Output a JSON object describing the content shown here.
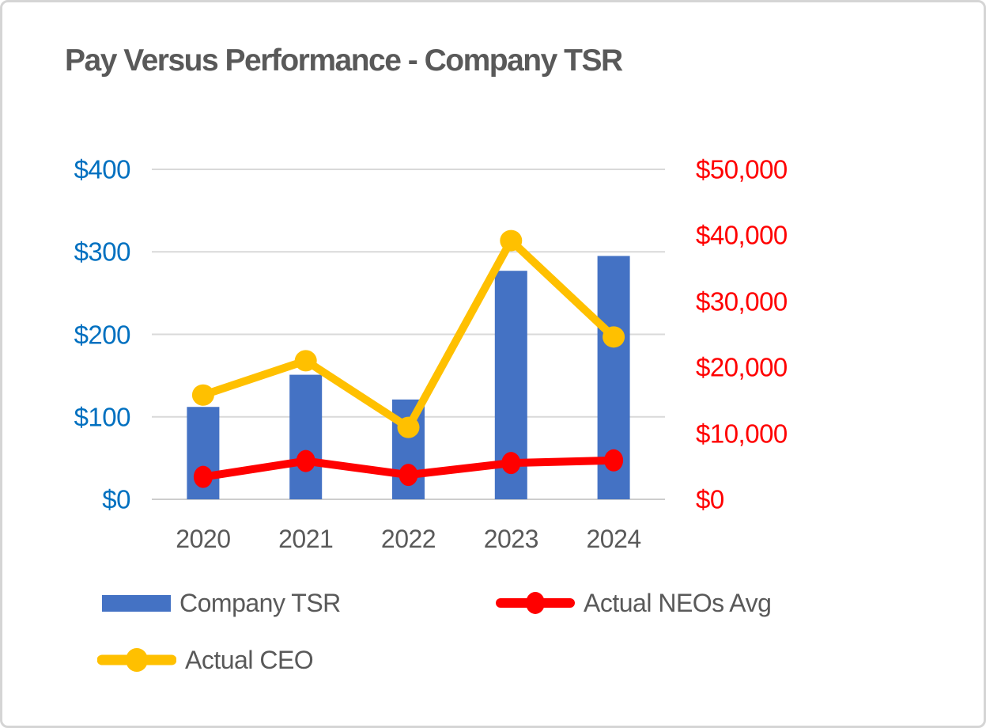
{
  "chart": {
    "title": "Pay Versus Performance - Company TSR"
  },
  "chart_data": {
    "type": "combo-bar-line",
    "title": "Pay Versus Performance - Company TSR",
    "categories": [
      "2020",
      "2021",
      "2022",
      "2023",
      "2024"
    ],
    "series": [
      {
        "name": "Company TSR",
        "type": "bar",
        "axis": "left",
        "color": "#4472c4",
        "values": [
          112,
          151,
          121,
          277,
          295
        ]
      },
      {
        "name": "Actual CEO",
        "type": "line",
        "axis": "right",
        "color": "#ffc000",
        "values": [
          15800,
          21000,
          10900,
          39200,
          24600
        ]
      },
      {
        "name": "Actual NEOs Avg",
        "type": "line",
        "axis": "right",
        "color": "#ff0000",
        "values": [
          3400,
          5800,
          3700,
          5500,
          5900
        ]
      }
    ],
    "left_axis": {
      "min": 0,
      "max": 400,
      "step": 100,
      "ticks": [
        "$0",
        "$100",
        "$200",
        "$300",
        "$400"
      ],
      "color": "#0070c0"
    },
    "right_axis": {
      "min": 0,
      "max": 50000,
      "step": 10000,
      "ticks": [
        "$0",
        "$10,000",
        "$20,000",
        "$30,000",
        "$40,000",
        "$50,000"
      ],
      "color": "#ff0000"
    },
    "grid": true,
    "gridline_color": "#d9d9d9",
    "legend_position": "bottom-left-two-rows"
  },
  "legend": {
    "items": [
      {
        "label": "Company TSR",
        "swatch": "bar-swatch",
        "color": "#4472c4"
      },
      {
        "label": "Actual NEOs Avg",
        "swatch": "line-swatch",
        "color": "#ff0000"
      },
      {
        "label": "Actual CEO",
        "swatch": "line-swatch",
        "color": "#ffc000"
      }
    ]
  }
}
